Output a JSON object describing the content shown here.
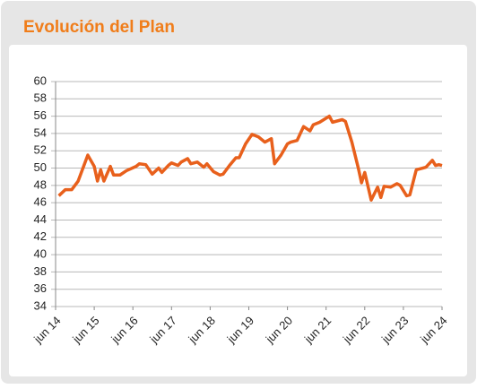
{
  "chart_data": {
    "type": "line",
    "title": "Evolución del Plan",
    "x": [
      1,
      3,
      5,
      7,
      9,
      10,
      12,
      13,
      14,
      15,
      17,
      18,
      20,
      22,
      25,
      26,
      28,
      30,
      32,
      33,
      35,
      36,
      38,
      39,
      41,
      42,
      44,
      46,
      47,
      49,
      51,
      52,
      54,
      56,
      57,
      59,
      61,
      63,
      65,
      67,
      68,
      70,
      72,
      73,
      75,
      77,
      79,
      80,
      82,
      85,
      86,
      89,
      90,
      92,
      94,
      95,
      96,
      98,
      100,
      101,
      102,
      104,
      106,
      107,
      109,
      110,
      112,
      114,
      115,
      117,
      118,
      119,
      120
    ],
    "series": [
      {
        "name": "Evolución del Plan",
        "color": "#e8601c",
        "values": [
          46.8,
          47.5,
          47.5,
          48.5,
          50.5,
          51.5,
          50.2,
          48.5,
          49.8,
          48.5,
          50.2,
          49.2,
          49.2,
          49.7,
          50.2,
          50.5,
          50.4,
          49.3,
          50.0,
          49.5,
          50.3,
          50.6,
          50.3,
          50.7,
          51.1,
          50.5,
          50.7,
          50.1,
          50.5,
          49.6,
          49.2,
          49.3,
          50.3,
          51.2,
          51.2,
          52.8,
          53.9,
          53.6,
          53.0,
          53.4,
          50.5,
          51.5,
          52.8,
          53.0,
          53.2,
          54.8,
          54.3,
          55.0,
          55.3,
          56.0,
          55.3,
          55.6,
          55.4,
          53.0,
          50.0,
          48.3,
          49.5,
          46.3,
          47.8,
          46.6,
          47.9,
          47.8,
          48.2,
          48.0,
          46.8,
          46.9,
          49.8,
          50.0,
          50.1,
          50.9,
          50.3,
          50.4,
          50.3
        ]
      }
    ],
    "xlim": [
      0,
      120
    ],
    "xticks": [
      {
        "value": 0,
        "label": "jun 14"
      },
      {
        "value": 12,
        "label": "jun 15"
      },
      {
        "value": 24,
        "label": "jun 16"
      },
      {
        "value": 36,
        "label": "jun 17"
      },
      {
        "value": 48,
        "label": "jun 18"
      },
      {
        "value": 60,
        "label": "jun 19"
      },
      {
        "value": 72,
        "label": "jun 20"
      },
      {
        "value": 84,
        "label": "jun 21"
      },
      {
        "value": 96,
        "label": "jun 22"
      },
      {
        "value": 108,
        "label": "jun 23"
      },
      {
        "value": 120,
        "label": "jun 24"
      }
    ],
    "ylim": [
      34,
      60
    ],
    "yticks": [
      34,
      36,
      38,
      40,
      42,
      44,
      46,
      48,
      50,
      52,
      54,
      56,
      58,
      60
    ],
    "grid": true
  }
}
